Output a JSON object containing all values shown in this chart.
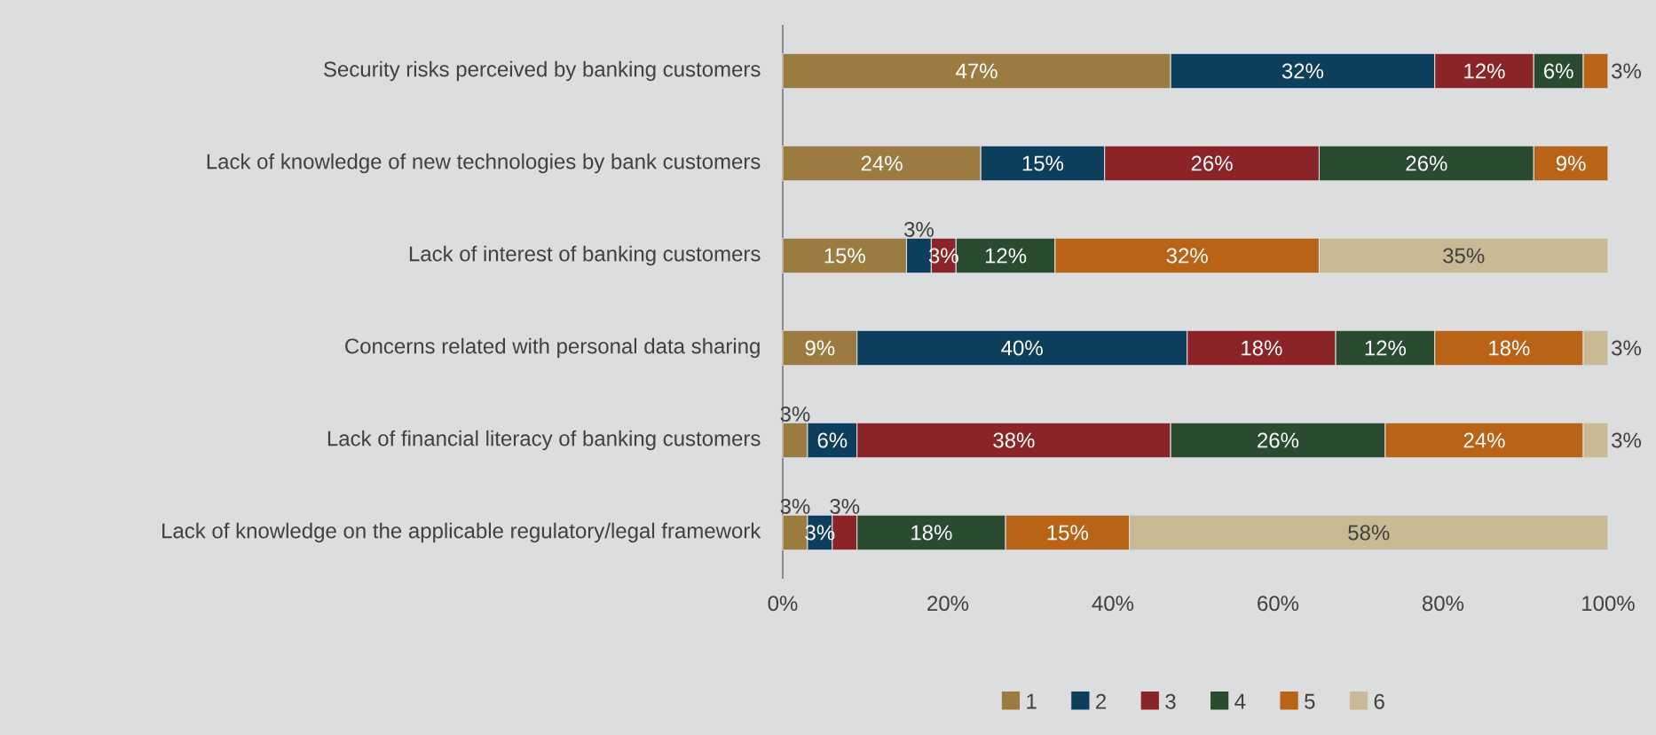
{
  "chart_data": {
    "type": "bar",
    "orientation": "horizontal",
    "stacked": true,
    "categories": [
      "Security risks perceived by banking customers",
      "Lack of knowledge of new technologies by bank  customers",
      "Lack of interest of banking customers",
      "Concerns related with personal data sharing",
      "Lack of financial literacy of banking customers",
      "Lack of knowledge on the applicable regulatory/legal framework"
    ],
    "series": [
      {
        "name": "1",
        "color": "#9b7b3f",
        "values": [
          47,
          24,
          15,
          9,
          3,
          3
        ],
        "value_labels": [
          "47%",
          "24%",
          "15%",
          "9%",
          "3%",
          "3%"
        ]
      },
      {
        "name": "2",
        "color": "#0d3f5c",
        "values": [
          32,
          15,
          3,
          40,
          6,
          3
        ],
        "value_labels": [
          "32%",
          "15%",
          "3%",
          "40%",
          "6%",
          "3%"
        ]
      },
      {
        "name": "3",
        "color": "#8a2428",
        "values": [
          12,
          26,
          3,
          18,
          38,
          3
        ],
        "value_labels": [
          "12%",
          "26%",
          "3%",
          "18%",
          "38%",
          "3%"
        ]
      },
      {
        "name": "4",
        "color": "#2b4b31",
        "values": [
          6,
          26,
          12,
          12,
          26,
          18
        ],
        "value_labels": [
          "6%",
          "26%",
          "12%",
          "12%",
          "26%",
          "18%"
        ]
      },
      {
        "name": "5",
        "color": "#b86316",
        "values": [
          3,
          9,
          32,
          18,
          24,
          15
        ],
        "value_labels": [
          "3%",
          "9%",
          "32%",
          "18%",
          "24%",
          "15%"
        ]
      },
      {
        "name": "6",
        "color": "#c9b994",
        "values": [
          null,
          null,
          35,
          3,
          3,
          58
        ],
        "value_labels": [
          null,
          null,
          "35%",
          "3%",
          "3%",
          "58%"
        ]
      }
    ],
    "xlim": [
      0,
      100
    ],
    "xticks": [
      {
        "value": 0,
        "label": "0%"
      },
      {
        "value": 20,
        "label": "20%"
      },
      {
        "value": 40,
        "label": "40%"
      },
      {
        "value": 60,
        "label": "60%"
      },
      {
        "value": 80,
        "label": "80%"
      },
      {
        "value": 100,
        "label": "100%"
      }
    ],
    "legend": "bottom"
  }
}
